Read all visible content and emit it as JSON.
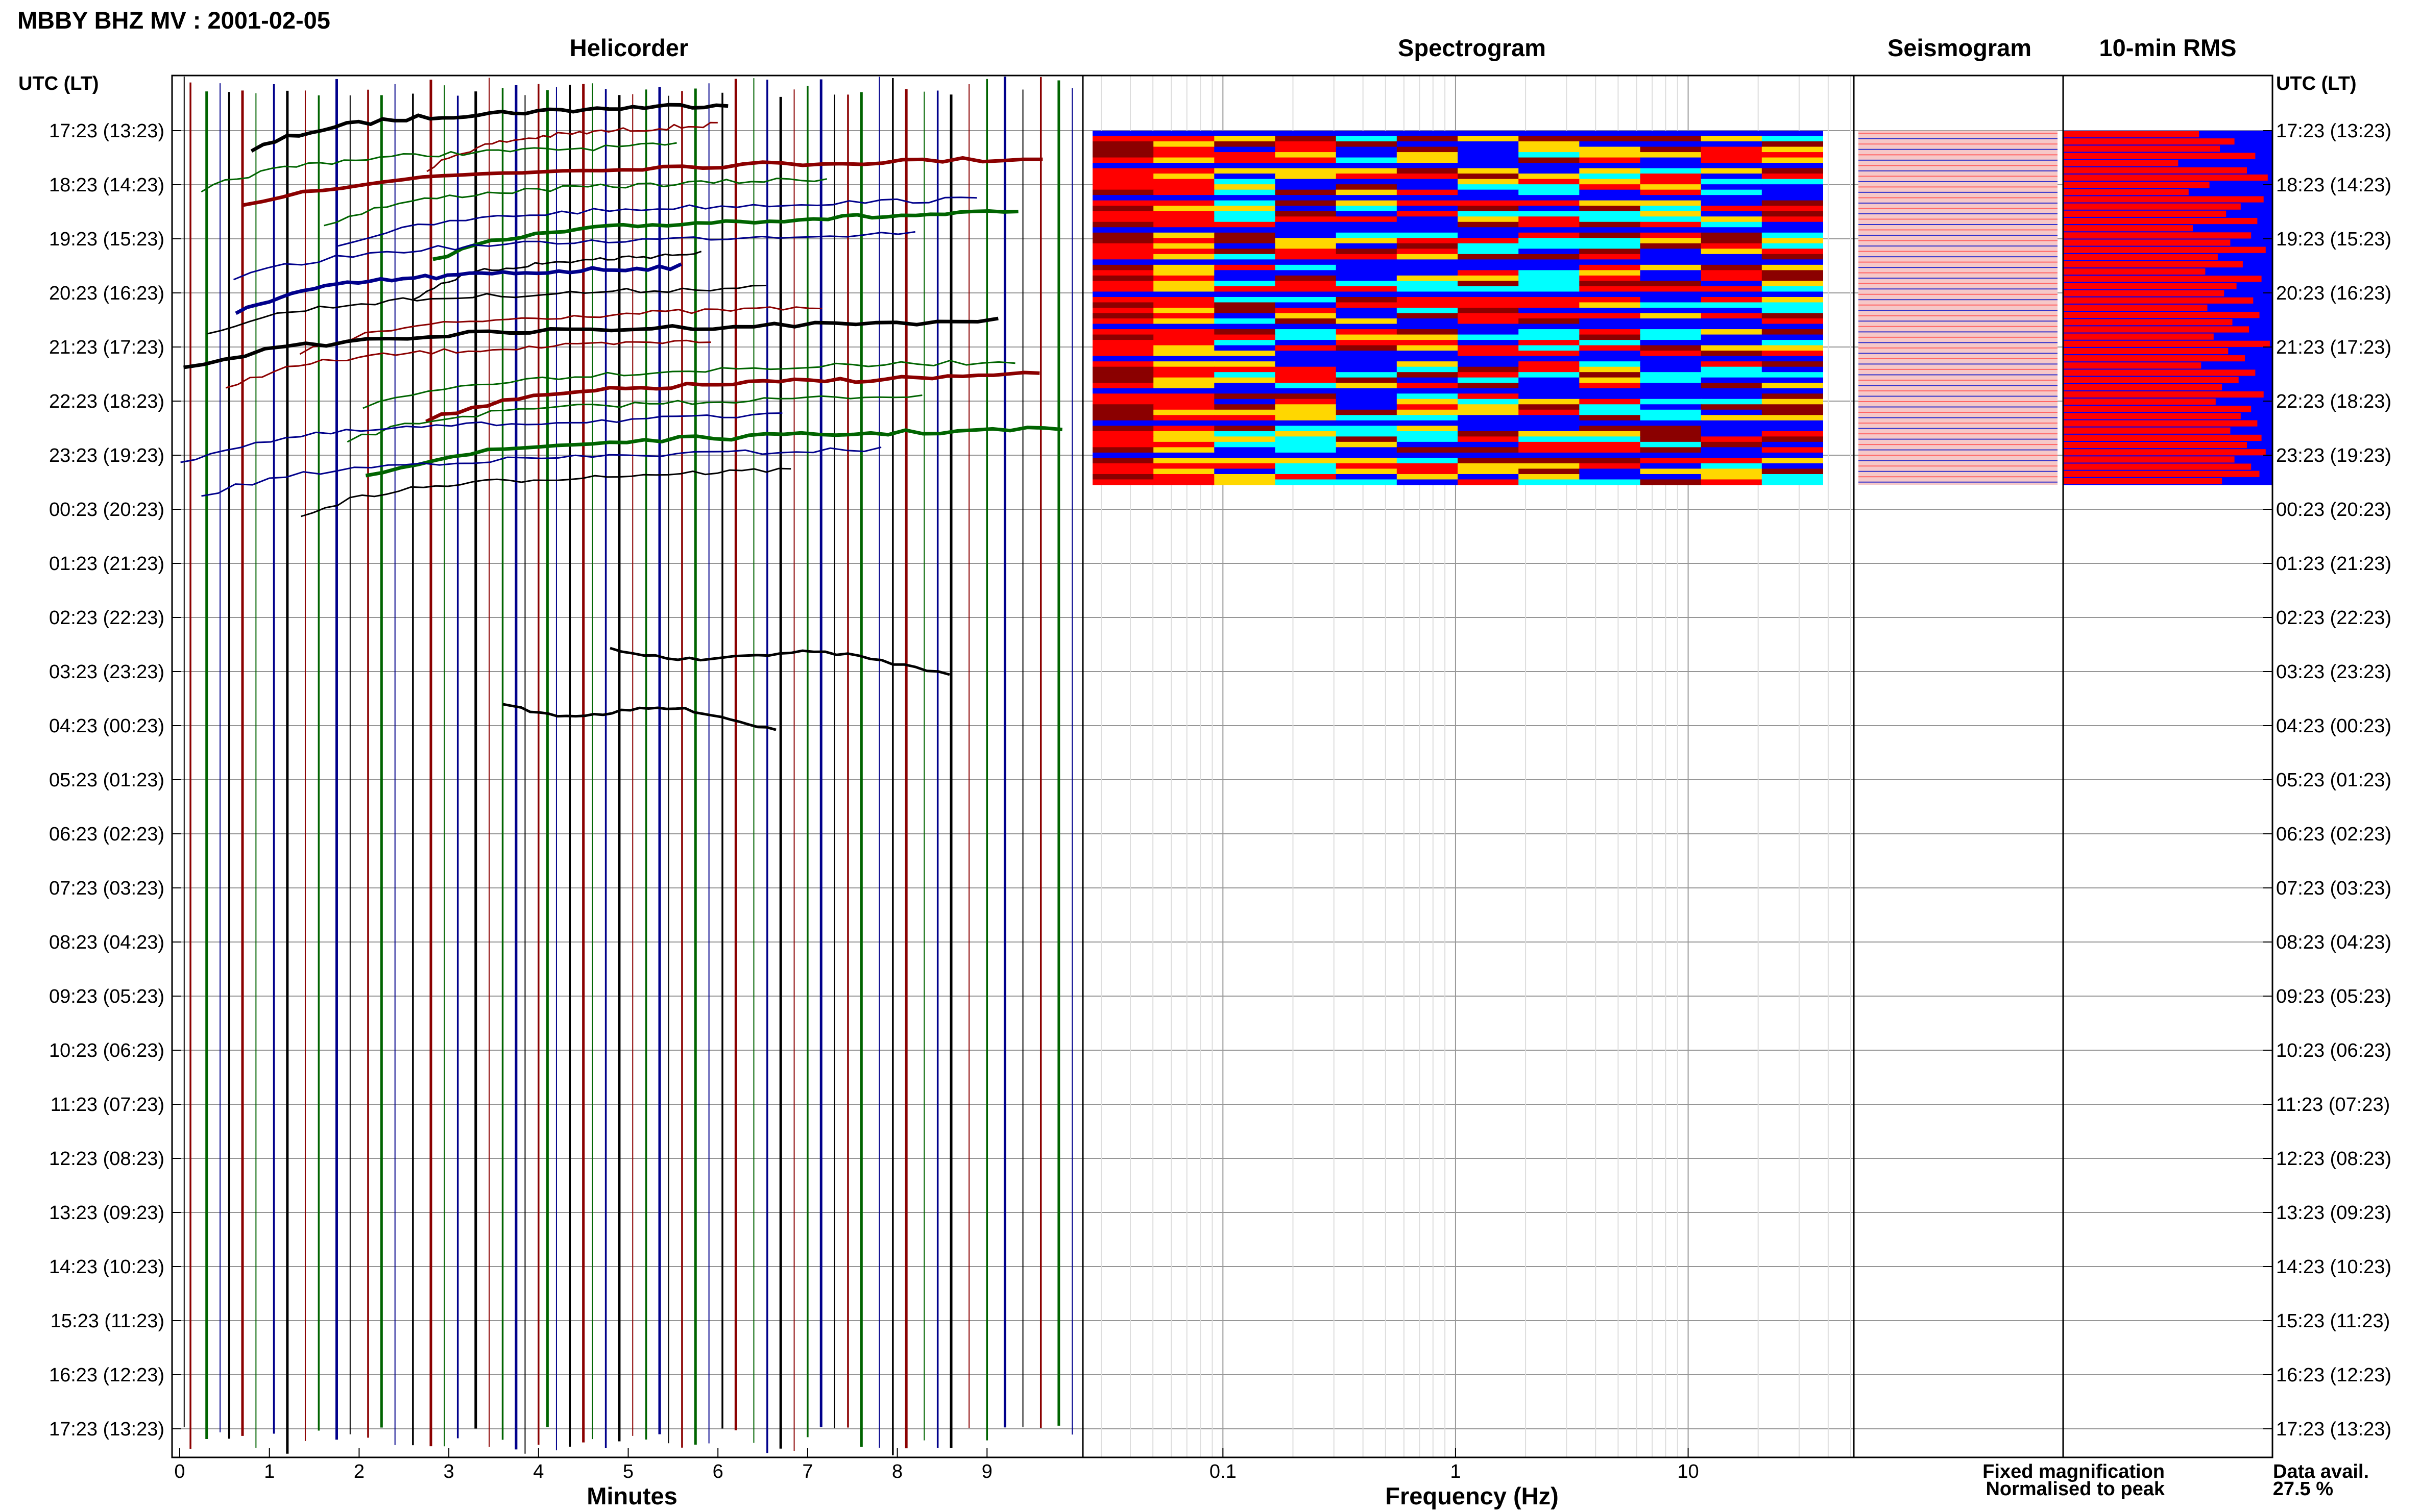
{
  "figure": {
    "title": "MBBY BHZ MV : 2001-02-05",
    "time_axis_label": "UTC (LT)",
    "data_avail_label": "Data avail.",
    "data_avail_value": "27.5 %",
    "legend": {
      "fixed": "Fixed magnification",
      "normalised": "Normalised to peak",
      "fixed_color": "#0000ff",
      "normalised_color": "#ff0000"
    },
    "colors": {
      "trace_colors": [
        "#000000",
        "#8b0000",
        "#006400",
        "#00008b"
      ],
      "rms_fixed": "#0000ff",
      "rms_normalised": "#ff0000"
    }
  },
  "chart_data": [
    {
      "type": "line",
      "title": "Helicorder",
      "xlabel": "Minutes",
      "x_ticks": [
        "0",
        "1",
        "2",
        "3",
        "4",
        "5",
        "6",
        "7",
        "8",
        "9"
      ],
      "xlim": [
        0,
        10
      ],
      "y_ticks": [
        "17:23 (13:23)",
        "18:23 (14:23)",
        "19:23 (15:23)",
        "20:23 (16:23)",
        "21:23 (17:23)",
        "22:23 (18:23)",
        "23:23 (19:23)",
        "00:23 (20:23)",
        "01:23 (21:23)",
        "02:23 (22:23)",
        "03:23 (23:23)",
        "04:23 (00:23)",
        "05:23 (01:23)",
        "06:23 (02:23)",
        "07:23 (03:23)",
        "08:23 (04:23)",
        "09:23 (05:23)",
        "10:23 (06:23)",
        "11:23 (07:23)",
        "12:23 (08:23)",
        "13:23 (09:23)",
        "14:23 (10:23)",
        "15:23 (11:23)",
        "16:23 (12:23)",
        "17:23 (13:23)"
      ],
      "spike_minutes": [
        0.05,
        0.12,
        0.3,
        0.45,
        0.55,
        0.7,
        0.85,
        1.05,
        1.2,
        1.4,
        1.55,
        1.75,
        1.9,
        2.1,
        2.25,
        2.4,
        2.6,
        2.8,
        2.95,
        3.1,
        3.3,
        3.45,
        3.6,
        3.75,
        3.85,
        4.0,
        4.1,
        4.2,
        4.35,
        4.5,
        4.6,
        4.75,
        4.9,
        5.05,
        5.2,
        5.35,
        5.45,
        5.6,
        5.75,
        5.9,
        6.05,
        6.2,
        6.4,
        6.55,
        6.7,
        6.85,
        7.0,
        7.15,
        7.3,
        7.45,
        7.6,
        7.8,
        7.95,
        8.1,
        8.3,
        8.45,
        8.6,
        8.8,
        9.0,
        9.2,
        9.4,
        9.6,
        9.8,
        9.95
      ]
    },
    {
      "type": "heatmap",
      "title": "Spectrogram",
      "xlabel": "Frequency (Hz)",
      "x_scale": "log",
      "x_ticks": [
        "0.1",
        "1",
        "10"
      ],
      "xlim": [
        0.025,
        50
      ],
      "data_rows": 66,
      "colormap": [
        "#8b0000",
        "#ff0000",
        "#ffd700",
        "#00ffff",
        "#0000ff"
      ]
    },
    {
      "type": "line",
      "title": "Seismogram",
      "data_rows": 66
    },
    {
      "type": "bar",
      "title": "10-min RMS",
      "series": [
        {
          "name": "Fixed magnification",
          "color": "#0000ff"
        },
        {
          "name": "Normalised to peak",
          "color": "#ff0000"
        }
      ],
      "values": [
        0.65,
        0.82,
        0.75,
        0.92,
        0.55,
        0.88,
        0.98,
        0.7,
        0.6,
        0.96,
        0.85,
        0.78,
        0.93,
        0.62,
        0.9,
        0.8,
        0.97,
        0.74,
        0.86,
        0.68,
        0.95,
        0.83,
        0.77,
        0.91,
        0.69,
        0.94,
        0.81,
        0.89,
        0.72,
        0.99,
        0.79,
        0.87,
        0.66,
        0.92,
        0.84,
        0.76,
        0.96,
        0.73,
        0.9,
        0.85,
        0.93,
        0.8,
        0.95,
        0.88,
        0.97,
        0.82,
        0.9,
        0.94,
        0.76
      ],
      "xlim": [
        0,
        1
      ]
    }
  ]
}
